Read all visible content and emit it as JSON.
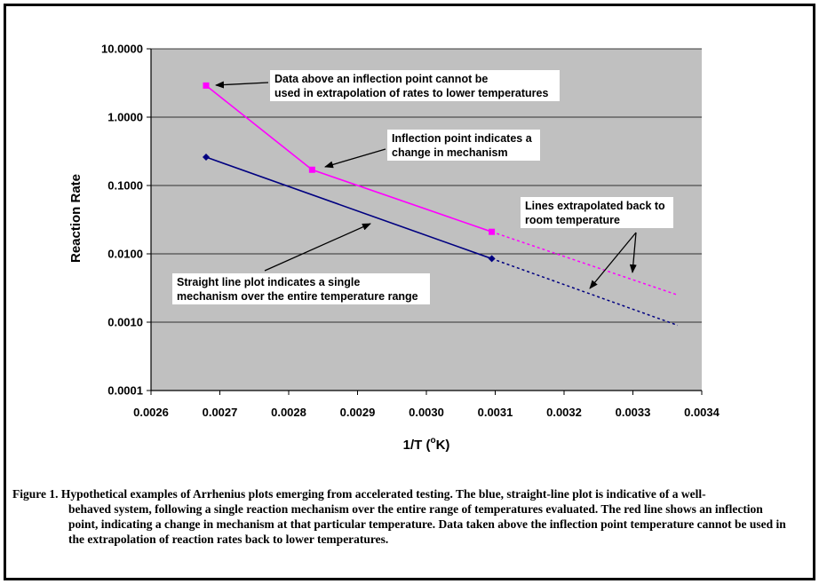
{
  "chart_data": {
    "type": "line",
    "xlabel_prefix": "1/T (",
    "xlabel_sup": "o",
    "xlabel_suffix": "K)",
    "ylabel": "Reaction Rate",
    "xlim": [
      0.0026,
      0.0034
    ],
    "ylim": [
      0.0001,
      10
    ],
    "y_scale": "log",
    "grid": "horizontal",
    "x_ticks": [
      "0.0026",
      "0.0027",
      "0.0028",
      "0.0029",
      "0.0030",
      "0.0031",
      "0.0032",
      "0.0033",
      "0.0034"
    ],
    "x_tick_values": [
      0.0026,
      0.0027,
      0.0028,
      0.0029,
      0.003,
      0.0031,
      0.0032,
      0.0033,
      0.0034
    ],
    "y_ticks": [
      "10.0000",
      "1.0000",
      "0.1000",
      "0.0100",
      "0.0010",
      "0.0001"
    ],
    "y_tick_values": [
      10,
      1,
      0.1,
      0.01,
      0.001,
      0.0001
    ],
    "plot_background": "#c0c0c0",
    "series": [
      {
        "color": "#ff00ff",
        "marker": "square",
        "x": [
          0.00268,
          0.002834,
          0.003095
        ],
        "y": [
          2.9,
          0.17,
          0.021
        ],
        "extrapolation": {
          "x": [
            0.003095,
            0.003365
          ],
          "y": [
            0.021,
            0.0025
          ]
        }
      },
      {
        "color": "#000080",
        "marker": "diamond",
        "x": [
          0.00268,
          0.003095
        ],
        "y": [
          0.26,
          0.0085
        ],
        "extrapolation": {
          "x": [
            0.003095,
            0.003365
          ],
          "y": [
            0.0085,
            0.0009
          ]
        }
      }
    ],
    "annotations": [
      {
        "lines": [
          "Data above an inflection point cannot be",
          "used in extrapolation of rates to lower temperatures"
        ]
      },
      {
        "lines": [
          "Inflection point indicates a",
          "change in mechanism"
        ]
      },
      {
        "lines": [
          "Lines extrapolated back to",
          "room temperature"
        ]
      },
      {
        "lines": [
          "Straight line plot indicates a single",
          "mechanism over the entire temperature range"
        ]
      }
    ]
  },
  "caption": {
    "line1": "Figure 1.  Hypothetical examples of Arrhenius plots emerging from accelerated testing.  The blue, straight-line plot is indicative of a well-",
    "rest": "behaved system, following a single reaction mechanism over the entire range of temperatures evaluated.  The red line shows an inflection point, indicating a change in mechanism at that particular temperature.  Data taken above the inflection point temperature cannot be used in the extrapolation of reaction rates back to lower temperatures."
  }
}
